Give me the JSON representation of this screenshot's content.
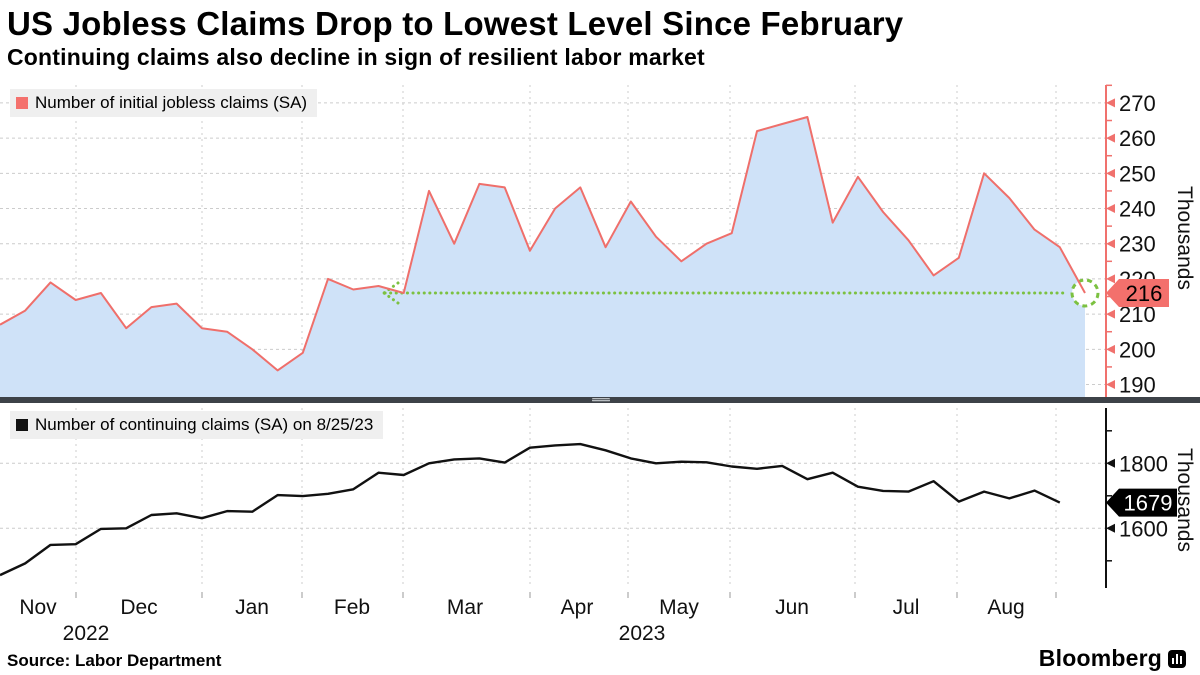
{
  "header": {
    "title": "US Jobless Claims Drop to Lowest Level Since February",
    "subtitle": "Continuing claims also decline in sign of resilient labor market"
  },
  "source": "Source: Labor Department",
  "brand": {
    "wordmark": "Bloomberg"
  },
  "colors": {
    "initial_line": "#ef6f6b",
    "initial_fill": "#cfe2f8",
    "legend_red": "#f4716d",
    "continuing_line": "#111111",
    "green_callout": "#7cc141",
    "grid": "#cccccc",
    "axis_red": "#f0716d",
    "axis_black": "#111111",
    "badge_initial_bg": "#f3706c",
    "badge_initial_text": "#000000",
    "badge_continuing_bg": "#000000",
    "badge_continuing_text": "#ffffff",
    "divider": "#3d4248",
    "legend_bg": "#efefef"
  },
  "x_axis": {
    "months": [
      "Nov",
      "Dec",
      "Jan",
      "Feb",
      "Mar",
      "Apr",
      "May",
      "Jun",
      "Jul",
      "Aug"
    ],
    "years": [
      "2022",
      "2023"
    ]
  },
  "chart_data": [
    {
      "type": "area",
      "title": "Initial jobless claims",
      "legend": "Number of initial jobless claims (SA)",
      "ylabel": "Thousands",
      "ylim": [
        185,
        276
      ],
      "yticks": [
        190,
        200,
        210,
        220,
        230,
        240,
        250,
        260,
        270
      ],
      "yticks_minor": [
        195,
        205,
        215,
        225,
        235,
        245,
        255,
        265,
        275
      ],
      "last_label": "216",
      "callout": {
        "level": 216,
        "note": "dotted green line from February level to latest point"
      },
      "frequency": "weekly",
      "values": [
        207,
        211,
        219,
        214,
        216,
        206,
        212,
        213,
        206,
        205,
        200,
        194,
        199,
        220,
        217,
        218,
        216,
        245,
        230,
        247,
        246,
        228,
        240,
        246,
        229,
        242,
        232,
        225,
        230,
        233,
        262,
        264,
        266,
        236,
        249,
        239,
        231,
        221,
        226,
        250,
        243,
        234,
        229,
        216
      ]
    },
    {
      "type": "line",
      "title": "Continuing claims",
      "legend": "Number of continuing claims (SA) on 8/25/23",
      "ylabel": "Thousands",
      "ylim": [
        1390,
        1960
      ],
      "yticks": [
        1600,
        1800
      ],
      "yticks_minor": [
        1500,
        1700,
        1900
      ],
      "last_label": "1679",
      "frequency": "weekly",
      "values": [
        1456,
        1492,
        1549,
        1551,
        1598,
        1600,
        1641,
        1646,
        1631,
        1653,
        1651,
        1702,
        1699,
        1706,
        1720,
        1771,
        1764,
        1800,
        1812,
        1815,
        1802,
        1848,
        1855,
        1859,
        1840,
        1815,
        1800,
        1805,
        1803,
        1790,
        1783,
        1792,
        1751,
        1771,
        1728,
        1715,
        1713,
        1745,
        1682,
        1713,
        1692,
        1716,
        1679
      ]
    }
  ]
}
